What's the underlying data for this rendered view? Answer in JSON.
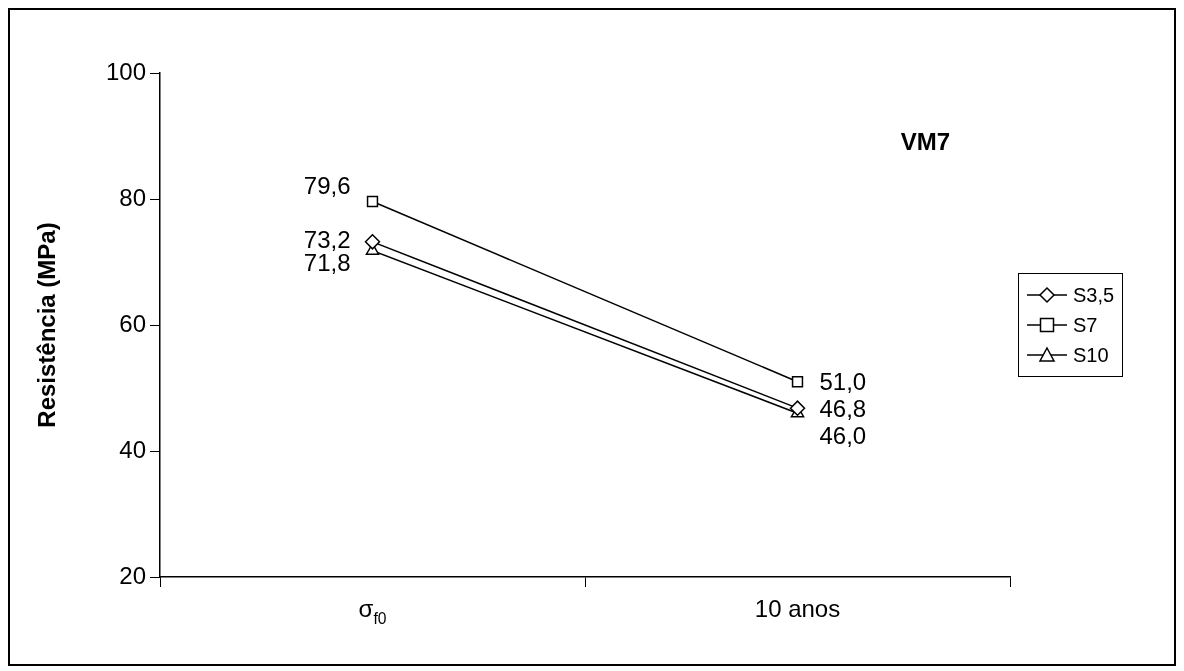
{
  "chart_data": {
    "type": "line",
    "ylabel": "Resistência (MPa)",
    "categories": [
      "σ$_{f0}$",
      "10 anos"
    ],
    "series": [
      {
        "name": "S3,5",
        "color": "#000000",
        "marker": "diamond",
        "values": [
          73.2,
          46.8
        ],
        "value_labels": [
          "73,2",
          "46,8"
        ]
      },
      {
        "name": "S7",
        "color": "#000000",
        "marker": "square",
        "values": [
          79.6,
          51.0
        ],
        "value_labels": [
          "79,6",
          "51,0"
        ]
      },
      {
        "name": "S10",
        "color": "#000000",
        "marker": "triangle",
        "values": [
          71.8,
          46.0
        ],
        "value_labels": [
          "71,8",
          "46,0"
        ]
      }
    ],
    "ylim": [
      20,
      100
    ],
    "yticks": [
      20,
      40,
      60,
      80,
      100
    ],
    "grid": false,
    "legend": "right",
    "line_style": "solid",
    "annotations": [
      "VM7"
    ]
  }
}
